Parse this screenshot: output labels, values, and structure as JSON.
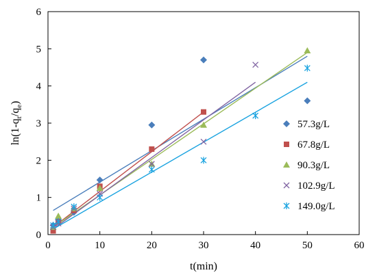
{
  "chart_data": {
    "type": "scatter",
    "title": "",
    "xlabel": "t(min)",
    "ylabel_parts": [
      "ln(1-q",
      "t",
      "/q",
      "e",
      ")"
    ],
    "xlim": [
      0,
      60
    ],
    "ylim": [
      0,
      6
    ],
    "x_ticks": [
      0,
      10,
      20,
      30,
      40,
      50,
      60
    ],
    "y_ticks": [
      0,
      1,
      2,
      3,
      4,
      5,
      6
    ],
    "grid": false,
    "legend_position": "right",
    "series": [
      {
        "name": "57.3g/L",
        "color": "#4a7ebb",
        "marker": "diamond",
        "points": [
          [
            1,
            0.25
          ],
          [
            2,
            0.4
          ],
          [
            5,
            0.6
          ],
          [
            10,
            1.47
          ],
          [
            20,
            2.95
          ],
          [
            30,
            4.7
          ],
          [
            50,
            3.6
          ]
        ],
        "trendline": [
          [
            1,
            0.65
          ],
          [
            50,
            4.8
          ]
        ]
      },
      {
        "name": "67.8g/L",
        "color": "#c0504d",
        "marker": "square",
        "points": [
          [
            1,
            0.1
          ],
          [
            2,
            0.35
          ],
          [
            5,
            0.65
          ],
          [
            10,
            1.3
          ],
          [
            20,
            2.3
          ],
          [
            30,
            3.3
          ]
        ],
        "trendline": [
          [
            1,
            0.2
          ],
          [
            30,
            3.3
          ]
        ]
      },
      {
        "name": "90.3g/L",
        "color": "#9bbb59",
        "marker": "triangle",
        "points": [
          [
            1,
            0.2
          ],
          [
            2,
            0.5
          ],
          [
            5,
            0.7
          ],
          [
            10,
            1.25
          ],
          [
            20,
            1.9
          ],
          [
            30,
            2.95
          ],
          [
            50,
            4.95
          ]
        ],
        "trendline": [
          [
            1,
            0.2
          ],
          [
            50,
            4.9
          ]
        ]
      },
      {
        "name": "102.9g/L",
        "color": "#8064a2",
        "marker": "x",
        "points": [
          [
            1,
            0.2
          ],
          [
            2,
            0.3
          ],
          [
            5,
            0.7
          ],
          [
            10,
            1.1
          ],
          [
            20,
            1.9
          ],
          [
            30,
            2.5
          ],
          [
            40,
            4.57
          ]
        ],
        "trendline": [
          [
            1,
            0.15
          ],
          [
            40,
            4.1
          ]
        ]
      },
      {
        "name": "149.0g/L",
        "color": "#1aa3e0",
        "marker": "asterisk",
        "points": [
          [
            1,
            0.25
          ],
          [
            2,
            0.35
          ],
          [
            5,
            0.75
          ],
          [
            10,
            1.0
          ],
          [
            20,
            1.75
          ],
          [
            30,
            2.0
          ],
          [
            40,
            3.2
          ],
          [
            50,
            4.48
          ]
        ],
        "trendline": [
          [
            1,
            0.15
          ],
          [
            50,
            4.1
          ]
        ]
      }
    ]
  }
}
